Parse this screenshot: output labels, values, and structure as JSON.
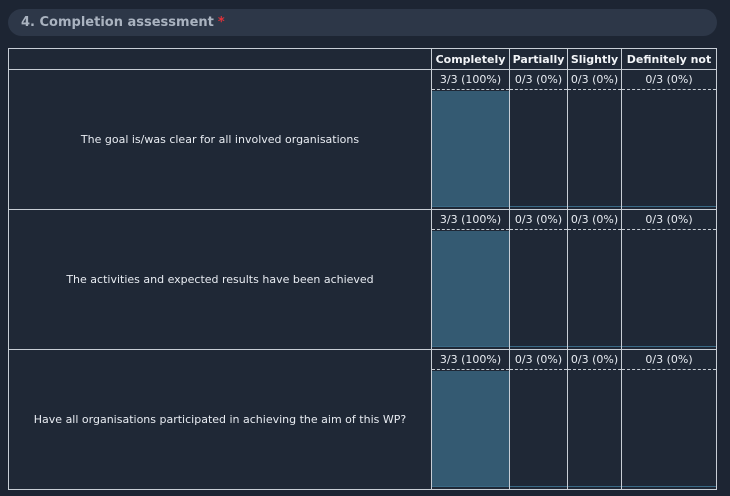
{
  "section": {
    "title": "4. Completion assessment",
    "required_marker": "*"
  },
  "columns": [
    "Completely",
    "Partially",
    "Slightly",
    "Definitely not"
  ],
  "rows": [
    {
      "question": "The goal is/was clear for all involved organisations",
      "cells": [
        {
          "label": "3/3 (100%)",
          "fraction": 1.0
        },
        {
          "label": "0/3 (0%)",
          "fraction": 0
        },
        {
          "label": "0/3 (0%)",
          "fraction": 0
        },
        {
          "label": "0/3 (0%)",
          "fraction": 0
        }
      ]
    },
    {
      "question": "The activities and expected results have been achieved",
      "cells": [
        {
          "label": "3/3 (100%)",
          "fraction": 1.0
        },
        {
          "label": "0/3 (0%)",
          "fraction": 0
        },
        {
          "label": "0/3 (0%)",
          "fraction": 0
        },
        {
          "label": "0/3 (0%)",
          "fraction": 0
        }
      ]
    },
    {
      "question": "Have all organisations participated in achieving the aim of this WP?",
      "cells": [
        {
          "label": "3/3 (100%)",
          "fraction": 1.0
        },
        {
          "label": "0/3 (0%)",
          "fraction": 0
        },
        {
          "label": "0/3 (0%)",
          "fraction": 0
        },
        {
          "label": "0/3 (0%)",
          "fraction": 0
        }
      ]
    }
  ],
  "colors": {
    "bar": "#345a72",
    "background": "#1d2533",
    "required": "#e0313a"
  }
}
